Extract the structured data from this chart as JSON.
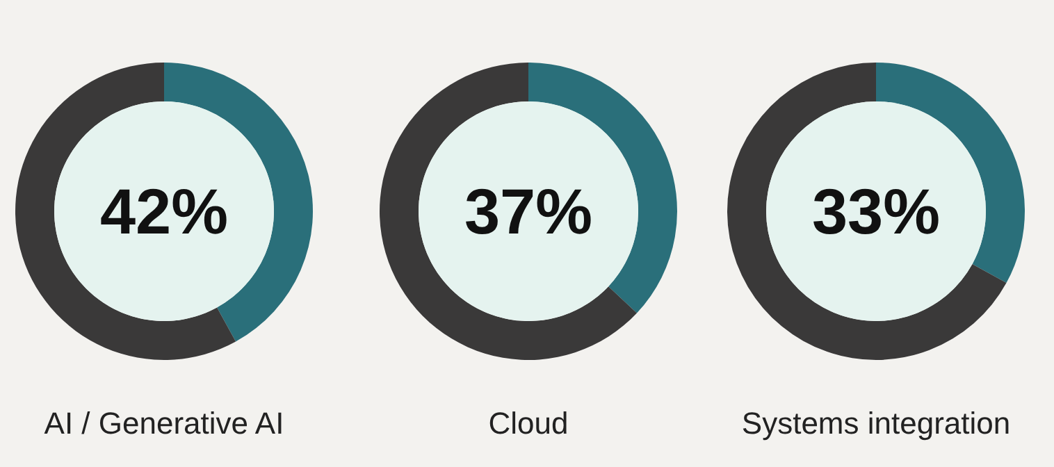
{
  "chart_data": [
    {
      "type": "donut",
      "title": "AI / Generative AI",
      "categories": [
        null,
        null
      ],
      "values": [
        42,
        58
      ],
      "colors": [
        "#2a6f7a",
        "#3a3939"
      ],
      "annotations": [
        "42%"
      ]
    },
    {
      "type": "donut",
      "title": "Cloud",
      "categories": [
        null,
        null
      ],
      "values": [
        37,
        63
      ],
      "colors": [
        "#2a6f7a",
        "#3a3939"
      ],
      "annotations": [
        "37%"
      ]
    },
    {
      "type": "donut",
      "title": "Systems integration",
      "categories": [
        null,
        null
      ],
      "values": [
        33,
        67
      ],
      "colors": [
        "#2a6f7a",
        "#3a3939"
      ],
      "annotations": [
        "33%"
      ]
    }
  ]
}
